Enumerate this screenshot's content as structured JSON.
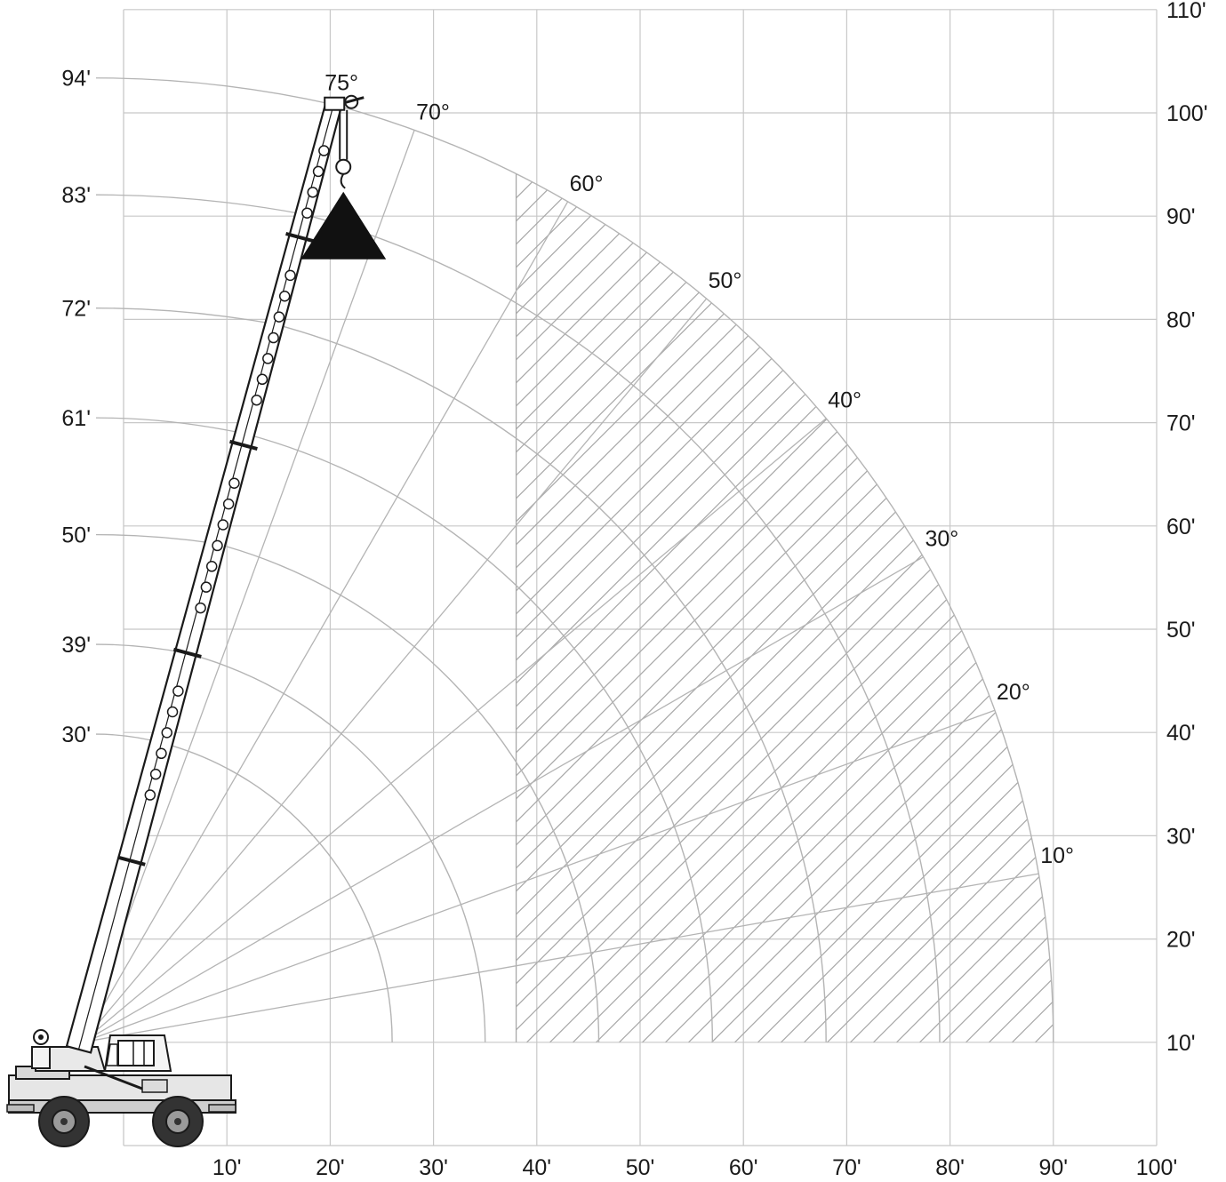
{
  "chart_data": {
    "type": "range-diagram",
    "title": "",
    "x_axis": {
      "unit": "ft",
      "range": [
        0,
        100
      ],
      "tick_values": [
        10,
        20,
        30,
        40,
        50,
        60,
        70,
        80,
        90,
        100
      ],
      "tick_labels": [
        "10'",
        "20'",
        "30'",
        "40'",
        "50'",
        "60'",
        "70'",
        "80'",
        "90'",
        "100'"
      ]
    },
    "y_axis": {
      "unit": "ft",
      "range": [
        0,
        110
      ],
      "position": "right",
      "tick_values": [
        10,
        20,
        30,
        40,
        50,
        60,
        70,
        80,
        90,
        100,
        110
      ],
      "tick_labels": [
        "10'",
        "20'",
        "30'",
        "40'",
        "50'",
        "60'",
        "70'",
        "80'",
        "90'",
        "100'",
        "110'"
      ]
    },
    "pivot": {
      "x": -4,
      "y": 10
    },
    "boom_lengths": [
      {
        "label": "30'",
        "radius": 30
      },
      {
        "label": "39'",
        "radius": 39
      },
      {
        "label": "50'",
        "radius": 50
      },
      {
        "label": "61'",
        "radius": 61
      },
      {
        "label": "72'",
        "radius": 72
      },
      {
        "label": "83'",
        "radius": 83
      },
      {
        "label": "94'",
        "radius": 94
      }
    ],
    "boom_angles": [
      {
        "label": "10°",
        "deg": 10
      },
      {
        "label": "20°",
        "deg": 20
      },
      {
        "label": "30°",
        "deg": 30
      },
      {
        "label": "40°",
        "deg": 40
      },
      {
        "label": "50°",
        "deg": 50
      },
      {
        "label": "60°",
        "deg": 60
      },
      {
        "label": "70°",
        "deg": 70
      },
      {
        "label": "75°",
        "deg": 75
      }
    ],
    "hatched_region": {
      "x_min": 38
    },
    "boom_shown": {
      "length": 94,
      "angle": 75
    },
    "colors": {
      "grid": "#c8c8c8",
      "arc": "#b4b4b4",
      "hatch": "#a8a8a8",
      "crane": "#1a1a1a"
    }
  }
}
